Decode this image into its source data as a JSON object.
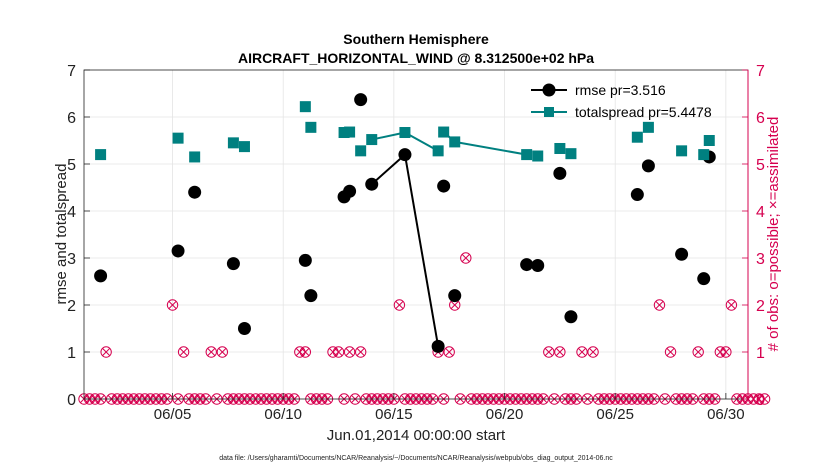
{
  "chart_data": {
    "type": "line",
    "title": "Southern Hemisphere",
    "subtitle": "AIRCRAFT_HORIZONTAL_WIND @ 8.312500e+02 hPa",
    "xlabel": "Jun.01,2014 00:00:00 start",
    "ylabel_left": "rmse and totalspread",
    "ylabel_right": "# of obs: o=possible; ×=assimilated",
    "footer": "data file: /Users/gharamti/Documents/NCAR/Reanalysis/~/Documents/NCAR/Reanalysis/webpub/obs_diag_output_2014-06.nc",
    "xlim": [
      1.0,
      31.0
    ],
    "ylim": [
      0,
      7
    ],
    "y2lim": [
      0,
      7
    ],
    "yticks": [
      0,
      1,
      2,
      3,
      4,
      5,
      6,
      7
    ],
    "y2ticks": [
      0,
      1,
      2,
      3,
      4,
      5,
      6,
      7
    ],
    "xtick_values": [
      5,
      10,
      15,
      20,
      25,
      30
    ],
    "xtick_labels": [
      "06/05",
      "06/10",
      "06/15",
      "06/20",
      "06/25",
      "06/30"
    ],
    "grid": true,
    "legend_position": "top-right",
    "colors": {
      "rmse": "#000000",
      "totalspread": "#008080",
      "obs": "#d6004f",
      "grid": "#e4e4e4",
      "axis": "#222222"
    },
    "series": [
      {
        "name": "rmse",
        "legend_label": "rmse pr=3.516",
        "marker": "circle",
        "points": [
          [
            1.75,
            2.62
          ],
          [
            5.25,
            3.15
          ],
          [
            6.0,
            4.4
          ],
          [
            7.75,
            2.88
          ],
          [
            8.25,
            1.5
          ],
          [
            11.0,
            2.95
          ],
          [
            11.25,
            2.2
          ],
          [
            12.75,
            4.3
          ],
          [
            13.0,
            4.42
          ],
          [
            13.5,
            6.37
          ],
          [
            14.0,
            4.57
          ],
          [
            15.5,
            5.2
          ],
          [
            17.0,
            1.12
          ],
          [
            17.25,
            4.53
          ],
          [
            17.75,
            2.2
          ],
          [
            21.0,
            2.86
          ],
          [
            21.5,
            2.84
          ],
          [
            22.5,
            4.8
          ],
          [
            23.0,
            1.75
          ],
          [
            26.0,
            4.35
          ],
          [
            26.5,
            4.96
          ],
          [
            28.0,
            3.08
          ],
          [
            29.0,
            2.56
          ],
          [
            29.25,
            5.15
          ]
        ],
        "connect": [
          [
            10,
            11
          ],
          [
            11,
            12
          ],
          [
            15,
            16
          ],
          [
            23,
            24
          ]
        ]
      },
      {
        "name": "totalspread",
        "legend_label": "totalspread pr=5.4478",
        "marker": "square",
        "points": [
          [
            1.75,
            5.2
          ],
          [
            5.25,
            5.55
          ],
          [
            6.0,
            5.15
          ],
          [
            7.75,
            5.45
          ],
          [
            8.25,
            5.37
          ],
          [
            11.0,
            6.22
          ],
          [
            11.25,
            5.78
          ],
          [
            12.75,
            5.67
          ],
          [
            13.0,
            5.68
          ],
          [
            13.5,
            5.28
          ],
          [
            14.0,
            5.52
          ],
          [
            15.5,
            5.67
          ],
          [
            17.0,
            5.28
          ],
          [
            17.25,
            5.68
          ],
          [
            17.75,
            5.47
          ],
          [
            21.0,
            5.2
          ],
          [
            21.5,
            5.17
          ],
          [
            22.5,
            5.33
          ],
          [
            23.0,
            5.22
          ],
          [
            26.0,
            5.57
          ],
          [
            26.5,
            5.78
          ],
          [
            28.0,
            5.28
          ],
          [
            29.0,
            5.2
          ],
          [
            29.25,
            5.5
          ]
        ],
        "connect": [
          [
            10,
            11
          ],
          [
            11,
            12
          ],
          [
            13,
            14
          ],
          [
            14,
            15
          ],
          [
            26,
            27
          ]
        ]
      }
    ],
    "obs_counts": {
      "possible": [
        0,
        0,
        0,
        0,
        1,
        0,
        0,
        0,
        0,
        0,
        0,
        0,
        0,
        0,
        0,
        0,
        2,
        0,
        1,
        0,
        0,
        0,
        0,
        1,
        0,
        1,
        0,
        0,
        0,
        0,
        0,
        0,
        0,
        0,
        0,
        0,
        0,
        0,
        0,
        1,
        1,
        0,
        0,
        0,
        0,
        1,
        1,
        0,
        1,
        0,
        1,
        0,
        0,
        0,
        0,
        0,
        0,
        2,
        0,
        0,
        0,
        0,
        0,
        0,
        1,
        0,
        1,
        2,
        0,
        3,
        0,
        0,
        0,
        0,
        0,
        0,
        0,
        0,
        0,
        0,
        0,
        0,
        0,
        0,
        1,
        0,
        1,
        0,
        0,
        0,
        1,
        0,
        1,
        0,
        0,
        0,
        0,
        0,
        0,
        0,
        0,
        0,
        0,
        0,
        2,
        0,
        1,
        0,
        0,
        0,
        0,
        1,
        0,
        0,
        0,
        1,
        1,
        2,
        0,
        0,
        0,
        0,
        0,
        0
      ],
      "assimilated": [
        0,
        0,
        0,
        0,
        1,
        0,
        0,
        0,
        0,
        0,
        0,
        0,
        0,
        0,
        0,
        0,
        2,
        0,
        1,
        0,
        0,
        0,
        0,
        1,
        0,
        1,
        0,
        0,
        0,
        0,
        0,
        0,
        0,
        0,
        0,
        0,
        0,
        0,
        0,
        1,
        1,
        0,
        0,
        0,
        0,
        1,
        1,
        0,
        1,
        0,
        1,
        0,
        0,
        0,
        0,
        0,
        0,
        2,
        0,
        0,
        0,
        0,
        0,
        0,
        1,
        0,
        1,
        2,
        0,
        3,
        0,
        0,
        0,
        0,
        0,
        0,
        0,
        0,
        0,
        0,
        0,
        0,
        0,
        0,
        1,
        0,
        1,
        0,
        0,
        0,
        1,
        0,
        1,
        0,
        0,
        0,
        0,
        0,
        0,
        0,
        0,
        0,
        0,
        0,
        2,
        0,
        1,
        0,
        0,
        0,
        0,
        1,
        0,
        0,
        0,
        1,
        1,
        2,
        0,
        0,
        0,
        0,
        0,
        0
      ],
      "start_day": 1.0,
      "step_days": 0.25
    }
  }
}
